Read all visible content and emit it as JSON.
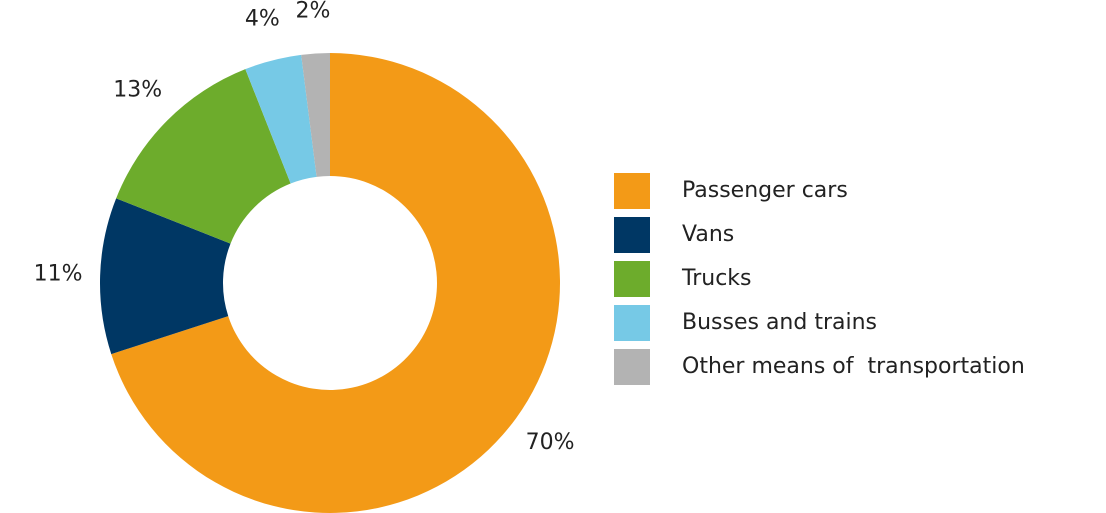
{
  "chart_data": {
    "type": "donut",
    "categories": [
      "Passenger cars",
      "Vans",
      "Trucks",
      "Busses and trains",
      "Other means of  transportation"
    ],
    "values": [
      70,
      11,
      13,
      4,
      2
    ],
    "value_labels": [
      "70%",
      "11%",
      "13%",
      "4%",
      "2%"
    ],
    "colors": [
      "#f39a17",
      "#003764",
      "#6dac2c",
      "#76c9e6",
      "#b3b3b3"
    ],
    "legend": "right"
  }
}
